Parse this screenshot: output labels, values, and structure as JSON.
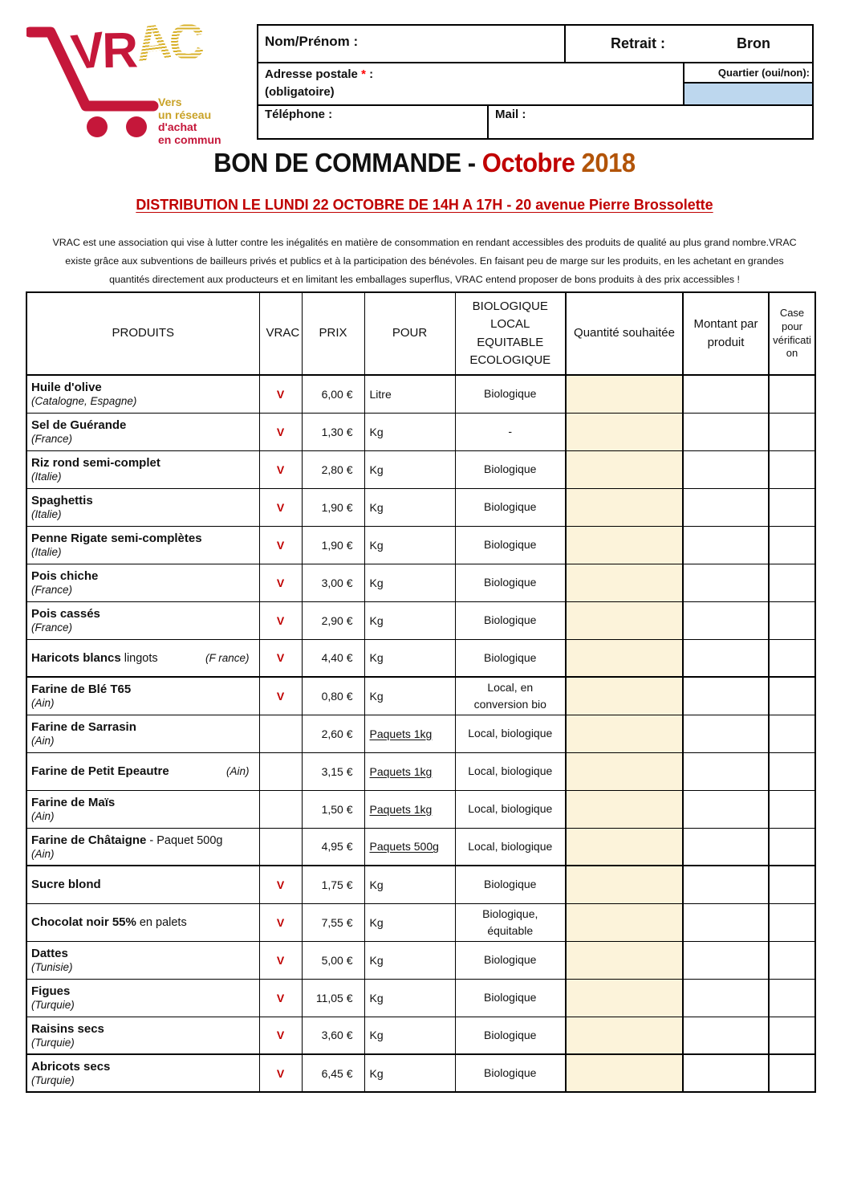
{
  "logo": {
    "letters": [
      "V",
      "R",
      "A",
      "C"
    ],
    "tagline_lines": [
      "Vers",
      "un réseau",
      "d'achat",
      "en commun"
    ]
  },
  "header_form": {
    "nom_prenom_label": "Nom/Prénom :",
    "retrait_label": "Retrait :",
    "retrait_value": "Bron",
    "adresse_label": "Adresse postale ",
    "adresse_required_mark": "*",
    "adresse_colon": " :",
    "adresse_note": "(obligatoire)",
    "quartier_label": "Quartier (oui/non):",
    "telephone_label": "Téléphone :",
    "mail_label": "Mail :"
  },
  "title": {
    "text_black": "BON DE COMMANDE - ",
    "text_red": "Octobre",
    "text_brown": " 2018"
  },
  "distribution_notice": "DISTRIBUTION LE LUNDI 22 OCTOBRE DE 14H A 17H - 20 avenue Pierre Brossolette",
  "intro": {
    "lines": [
      "VRAC est une association qui vise à lutter contre les inégalités en matière de consommation en rendant accessibles des produits de qualité au plus grand nombre.VRAC",
      "existe grâce aux subventions de bailleurs privés et publics et à la participation des bénévoles. En faisant peu de marge sur les produits, en les achetant en grandes",
      "quantités directement aux producteurs et en limitant les emballages superflus, VRAC entend proposer de bons produits à des prix accessibles !"
    ]
  },
  "table": {
    "headers": {
      "produits": "PRODUITS",
      "vrac": "VRAC",
      "prix": "PRIX",
      "pour": "POUR",
      "bio": "BIOLOGIQUE LOCAL EQUITABLE ECOLOGIQUE",
      "quantite": "Quantité souhaitée",
      "montant": "Montant par produit",
      "case": "Case pour vérification"
    },
    "vrac_mark": "V",
    "rows": [
      {
        "name": "Huile d'olive",
        "origin": "(Catalogne, Espagne)",
        "origin_inline": false,
        "vrac": true,
        "prix": "6,00 €",
        "pour": "Litre",
        "pour_underlined": false,
        "bio": "Biologique",
        "thick_top": false
      },
      {
        "name": "Sel de Guérande",
        "origin": "(France)",
        "origin_inline": false,
        "vrac": true,
        "prix": "1,30 €",
        "pour": "Kg",
        "pour_underlined": false,
        "bio": "-",
        "thick_top": false
      },
      {
        "name": "Riz rond semi-complet",
        "origin": "(Italie)",
        "origin_inline": false,
        "vrac": true,
        "prix": "2,80 €",
        "pour": "Kg",
        "pour_underlined": false,
        "bio": "Biologique",
        "thick_top": false
      },
      {
        "name": "Spaghettis",
        "origin": "(Italie)",
        "origin_inline": false,
        "vrac": true,
        "prix": "1,90 €",
        "pour": "Kg",
        "pour_underlined": false,
        "bio": "Biologique",
        "thick_top": false
      },
      {
        "name": "Penne Rigate semi-complètes",
        "origin": "(Italie)",
        "origin_inline": false,
        "vrac": true,
        "prix": "1,90 €",
        "pour": "Kg",
        "pour_underlined": false,
        "bio": "Biologique",
        "thick_top": false
      },
      {
        "name": "Pois chiche",
        "origin": "(France)",
        "origin_inline": false,
        "vrac": true,
        "prix": "3,00 €",
        "pour": "Kg",
        "pour_underlined": false,
        "bio": "Biologique",
        "thick_top": false
      },
      {
        "name": "Pois cassés",
        "origin": "(France)",
        "origin_inline": false,
        "vrac": true,
        "prix": "2,90 €",
        "pour": "Kg",
        "pour_underlined": false,
        "bio": "Biologique",
        "thick_top": false
      },
      {
        "name": "Haricots blancs",
        "suffix": "lingots",
        "origin": "(F rance)",
        "origin_inline": true,
        "vrac": true,
        "prix": "4,40 €",
        "pour": "Kg",
        "pour_underlined": false,
        "bio": "Biologique",
        "thick_top": false
      },
      {
        "name": "Farine de Blé T65",
        "origin": "(Ain)",
        "origin_inline": false,
        "vrac": true,
        "prix": "0,80 €",
        "pour": "Kg",
        "pour_underlined": false,
        "bio": "Local, en conversion bio",
        "thick_top": true
      },
      {
        "name": "Farine de Sarrasin",
        "origin": "(Ain)",
        "origin_inline": false,
        "vrac": false,
        "prix": "2,60 €",
        "pour": "Paquets 1kg",
        "pour_underlined": true,
        "bio": "Local, biologique",
        "thick_top": false
      },
      {
        "name": "Farine de Petit Epeautre",
        "origin": "(Ain)",
        "origin_inline": true,
        "vrac": false,
        "prix": "3,15 €",
        "pour": "Paquets 1kg",
        "pour_underlined": true,
        "bio": "Local, biologique",
        "thick_top": false
      },
      {
        "name": "Farine de Maïs",
        "origin": "(Ain)",
        "origin_inline": false,
        "vrac": false,
        "prix": "1,50 €",
        "pour": "Paquets 1kg",
        "pour_underlined": true,
        "bio": "Local, biologique",
        "thick_top": false
      },
      {
        "name": "Farine de Châtaigne",
        "suffix": "- Paquet 500g",
        "origin": "(Ain)",
        "origin_inline": false,
        "vrac": false,
        "prix": "4,95 €",
        "pour": "Paquets 500g",
        "pour_underlined": true,
        "bio": "Local, biologique",
        "thick_top": false
      },
      {
        "name": "Sucre blond",
        "origin": "",
        "origin_inline": false,
        "vrac": true,
        "prix": "1,75 €",
        "pour": "Kg",
        "pour_underlined": false,
        "bio": "Biologique",
        "thick_top": true
      },
      {
        "name": "Chocolat noir 55%",
        "suffix": "en palets",
        "origin": "",
        "origin_inline": false,
        "vrac": true,
        "prix": "7,55 €",
        "pour": "Kg",
        "pour_underlined": false,
        "bio": "Biologique, équitable",
        "thick_top": false
      },
      {
        "name": "Dattes",
        "origin": "(Tunisie)",
        "origin_inline": false,
        "vrac": true,
        "prix": "5,00 €",
        "pour": "Kg",
        "pour_underlined": false,
        "bio": "Biologique",
        "thick_top": false
      },
      {
        "name": "Figues",
        "origin": "(Turquie)",
        "origin_inline": false,
        "vrac": true,
        "prix": "11,05 €",
        "pour": "Kg",
        "pour_underlined": false,
        "bio": "Biologique",
        "thick_top": false
      },
      {
        "name": "Raisins secs",
        "origin": "(Turquie)",
        "origin_inline": false,
        "vrac": true,
        "prix": "3,60 €",
        "pour": "Kg",
        "pour_underlined": false,
        "bio": "Biologique",
        "thick_top": false
      },
      {
        "name": "Abricots secs",
        "origin": "(Turquie)",
        "origin_inline": false,
        "vrac": true,
        "prix": "6,45 €",
        "pour": "Kg",
        "pour_underlined": false,
        "bio": "Biologique",
        "thick_top": true
      }
    ]
  },
  "colors": {
    "accent_red": "#C00000",
    "year_brown": "#B25408",
    "qty_cell_cream": "#FCF3DA",
    "quartier_blue": "#BDD7EE",
    "logo_red": "#C5173A",
    "logo_gold": "#C9A227"
  }
}
